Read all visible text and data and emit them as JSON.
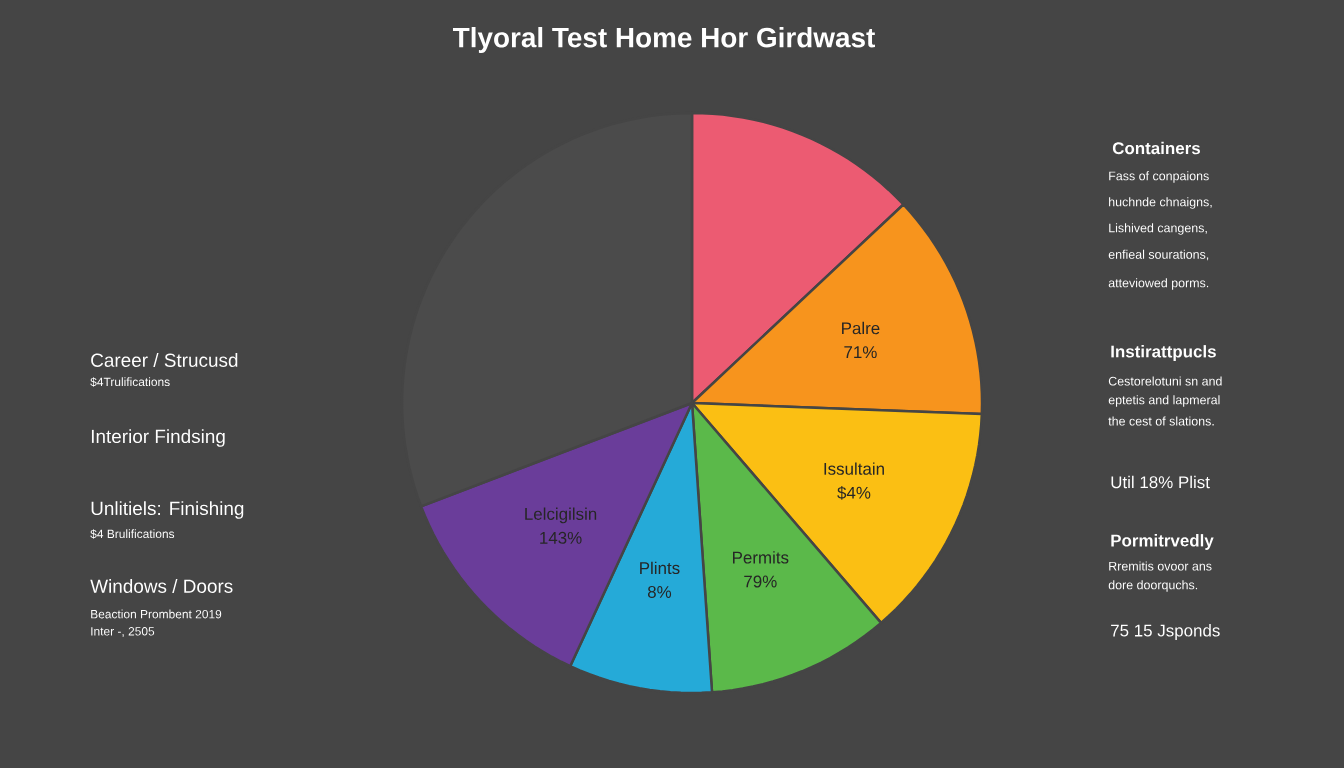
{
  "chart_data": {
    "type": "pie",
    "title": "Tlyoral Test Home Hor Girdwast",
    "categories": [
      null,
      "Palre",
      "Issultain",
      "Permits",
      "Plints",
      "Lelcigilsin",
      null
    ],
    "values": [
      13.0,
      12.6,
      13.1,
      10.2,
      8.0,
      12.3,
      30.8
    ],
    "colors": [
      "#ec5b72",
      "#f7941d",
      "#fbbf13",
      "#5bb94a",
      "#25aad8",
      "#6a3d9a",
      "#4b4b4b"
    ],
    "annotations": [
      "Career / Strucusd",
      "$4Trulifications",
      "Interior Findsing",
      "Unlitiels: Finishing",
      "$4 Brulifications",
      "Windows / Doors",
      "Beaction Prombent 2019",
      "Inter -, 2505",
      "Containers",
      "Fass of conpaions",
      "huchnde chnaigns,",
      "Lishived cangens,",
      "enfieal sourations,",
      "atteviowed porms.",
      "Instirattpucls",
      "Cestorelotuni sn and",
      "eptetis and lapmeral",
      "the cest of slations.",
      "Util 18% Plist",
      "Pormitrvedly",
      "Rremitis ovoor ans",
      "dore doorquchs.",
      "75 15 Jsponds",
      {
        "text": "71%",
        "x": "Palre"
      },
      {
        "text": "$4%",
        "x": "Issultain"
      },
      {
        "text": "79%",
        "x": "Permits"
      },
      {
        "text": "8%",
        "x": "Plints"
      },
      {
        "text": "143%",
        "x": "Lelcigilsin"
      }
    ]
  }
}
